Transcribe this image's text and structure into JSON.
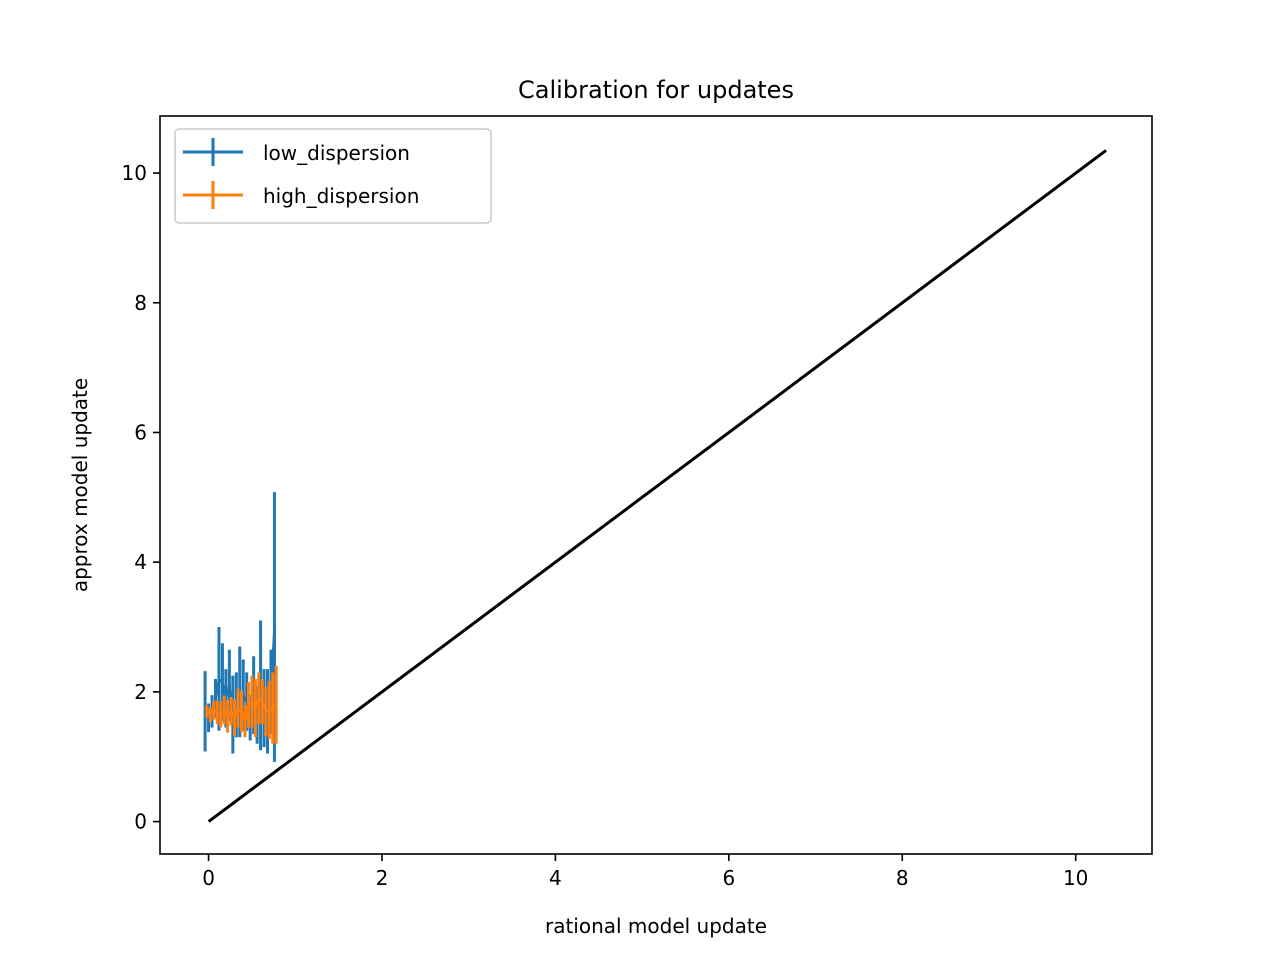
{
  "chart_data": {
    "type": "line",
    "title": "Calibration for updates",
    "xlabel": "rational model update",
    "ylabel": "approx model update",
    "xlim": [
      -0.56,
      10.88
    ],
    "ylim": [
      -0.5,
      10.88
    ],
    "xticks": [
      0,
      2,
      4,
      6,
      8,
      10
    ],
    "yticks": [
      0,
      2,
      4,
      6,
      8,
      10
    ],
    "legend_position": "upper-left",
    "grid": false,
    "series": [
      {
        "name": "low_dispersion",
        "color": "#1f77b4",
        "x": [
          -0.04,
          0.0,
          0.04,
          0.08,
          0.12,
          0.16,
          0.2,
          0.24,
          0.28,
          0.32,
          0.36,
          0.4,
          0.44,
          0.48,
          0.52,
          0.56,
          0.6,
          0.64,
          0.68,
          0.72,
          0.76
        ],
        "y": [
          1.7,
          1.6,
          1.7,
          1.9,
          2.2,
          2.15,
          1.9,
          2.1,
          1.65,
          1.8,
          2.0,
          1.95,
          1.85,
          1.6,
          1.95,
          1.65,
          2.1,
          1.75,
          1.7,
          2.0,
          3.0
        ],
        "err": [
          0.62,
          0.22,
          0.25,
          0.3,
          0.8,
          0.6,
          0.45,
          0.55,
          0.6,
          0.5,
          0.7,
          0.55,
          0.45,
          0.35,
          0.6,
          0.45,
          1.0,
          0.6,
          0.65,
          0.65,
          2.08
        ]
      },
      {
        "name": "high_dispersion",
        "color": "#ff7f0e",
        "x": [
          -0.02,
          0.02,
          0.06,
          0.1,
          0.14,
          0.18,
          0.22,
          0.26,
          0.3,
          0.34,
          0.38,
          0.42,
          0.46,
          0.5,
          0.54,
          0.58,
          0.62,
          0.66,
          0.7,
          0.74,
          0.78
        ],
        "y": [
          1.7,
          1.65,
          1.72,
          1.68,
          1.65,
          1.72,
          1.62,
          1.7,
          1.6,
          1.75,
          1.7,
          1.55,
          1.8,
          1.85,
          1.75,
          1.9,
          1.85,
          1.7,
          1.72,
          1.75,
          1.8
        ],
        "err": [
          0.1,
          0.12,
          0.15,
          0.18,
          0.2,
          0.22,
          0.25,
          0.22,
          0.28,
          0.3,
          0.32,
          0.25,
          0.35,
          0.4,
          0.45,
          0.4,
          0.35,
          0.38,
          0.45,
          0.55,
          0.6
        ]
      },
      {
        "name": "",
        "color": "#000000",
        "x": [
          0.0,
          10.35
        ],
        "y": [
          0.0,
          10.35
        ]
      }
    ]
  }
}
